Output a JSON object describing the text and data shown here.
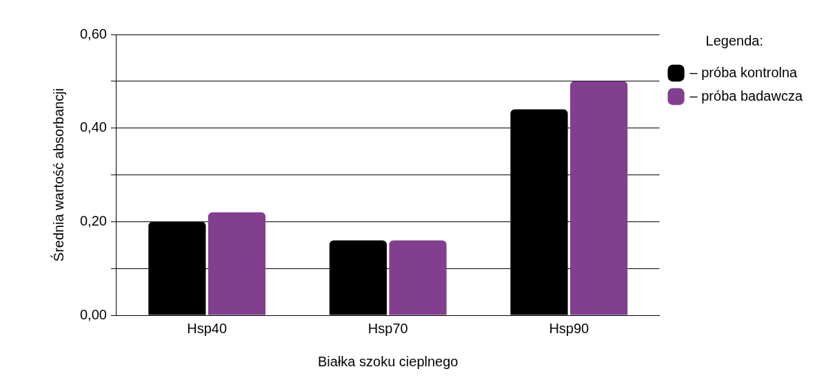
{
  "chart_data": {
    "type": "bar",
    "xlabel": "Białka szoku cieplnego",
    "ylabel": "Średnia wartość absorbancji",
    "legend_title": "Legenda:",
    "categories": [
      "Hsp40",
      "Hsp70",
      "Hsp90"
    ],
    "series": [
      {
        "name": "– próba kontrolna",
        "color": "#000000",
        "values": [
          0.2,
          0.16,
          0.44
        ]
      },
      {
        "name": "– próba badawcza",
        "color": "#823f8f",
        "values": [
          0.22,
          0.16,
          0.5
        ]
      }
    ],
    "ylim": [
      0,
      0.6
    ],
    "yticks": [
      {
        "value": 0,
        "label": "0,00"
      },
      {
        "value": 0.1,
        "label": null
      },
      {
        "value": 0.2,
        "label": "0,20"
      },
      {
        "value": 0.3,
        "label": null
      },
      {
        "value": 0.4,
        "label": "0,40"
      },
      {
        "value": 0.5,
        "label": null
      },
      {
        "value": 0.6,
        "label": "0,60"
      }
    ],
    "grid": "y",
    "legend": "top right"
  }
}
